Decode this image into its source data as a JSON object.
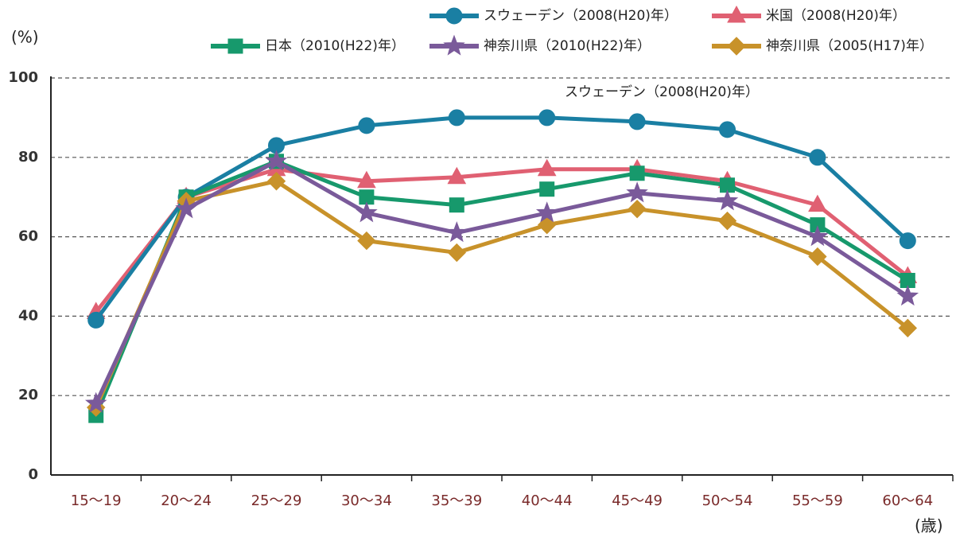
{
  "chart_data": {
    "type": "line",
    "y_unit": "(%)",
    "x_unit": "(歳)",
    "annotation": "スウェーデン（2008(H20)年）",
    "categories": [
      "15〜19",
      "20〜24",
      "25〜29",
      "30〜34",
      "35〜39",
      "40〜44",
      "45〜49",
      "50〜54",
      "55〜59",
      "60〜64"
    ],
    "series": [
      {
        "name": "スウェーデン（2008(H20)年）",
        "color": "#1a7fa3",
        "marker": "circle",
        "values": [
          39,
          70,
          83,
          88,
          90,
          90,
          89,
          87,
          80,
          59
        ]
      },
      {
        "name": "米国（2008(H20)年）",
        "color": "#e06072",
        "marker": "triangle",
        "values": [
          41,
          70,
          77,
          74,
          75,
          77,
          77,
          74,
          68,
          50
        ]
      },
      {
        "name": "日本（2010(H22)年）",
        "color": "#17996c",
        "marker": "square",
        "values": [
          15,
          70,
          79,
          70,
          68,
          72,
          76,
          73,
          63,
          49
        ]
      },
      {
        "name": "神奈川県（2010(H22)年）",
        "color": "#7a5a9a",
        "marker": "star",
        "values": [
          18,
          67,
          79,
          66,
          61,
          66,
          71,
          69,
          60,
          45
        ]
      },
      {
        "name": "神奈川県（2005(H17)年）",
        "color": "#c8922a",
        "marker": "diamond",
        "values": [
          17,
          69,
          74,
          59,
          56,
          63,
          67,
          64,
          55,
          37
        ]
      }
    ],
    "ylim": [
      0,
      100
    ],
    "yticks": [
      0,
      20,
      40,
      60,
      80,
      100
    ],
    "grid": true
  }
}
